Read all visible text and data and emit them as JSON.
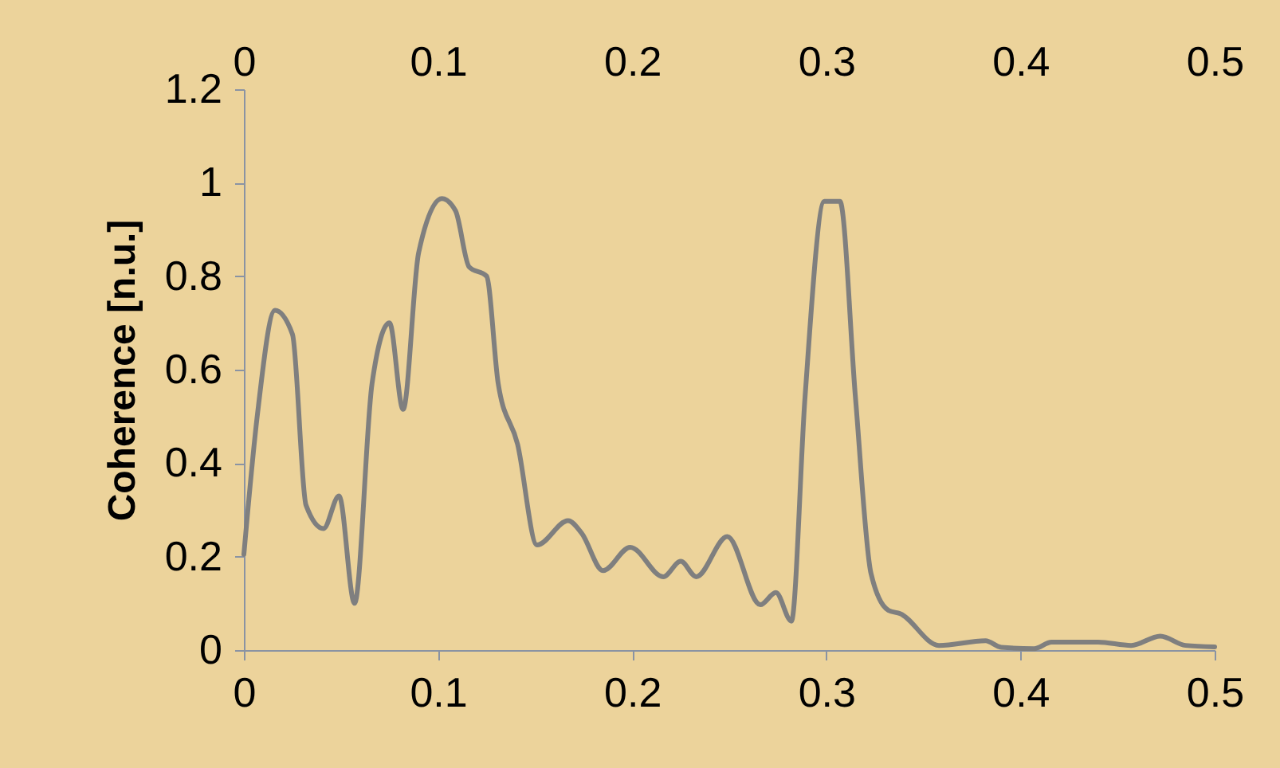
{
  "chart_data": {
    "type": "line",
    "ylabel": "Coherence [n.u.]",
    "x": [
      0,
      0.007,
      0.016,
      0.025,
      0.032,
      0.041,
      0.049,
      0.057,
      0.066,
      0.075,
      0.082,
      0.09,
      0.102,
      0.109,
      0.116,
      0.125,
      0.131,
      0.141,
      0.151,
      0.167,
      0.174,
      0.185,
      0.199,
      0.216,
      0.225,
      0.233,
      0.249,
      0.266,
      0.274,
      0.282,
      0.289,
      0.299,
      0.307,
      0.315,
      0.323,
      0.332,
      0.338,
      0.358,
      0.382,
      0.39,
      0.407,
      0.416,
      0.44,
      0.457,
      0.472,
      0.485,
      0.5
    ],
    "series": [
      {
        "color": "#7f7f7f",
        "values": [
          0.205,
          0.505,
          0.727,
          0.676,
          0.31,
          0.26,
          0.33,
          0.1,
          0.57,
          0.7,
          0.515,
          0.85,
          0.966,
          0.94,
          0.82,
          0.8,
          0.57,
          0.44,
          0.225,
          0.277,
          0.25,
          0.17,
          0.22,
          0.157,
          0.19,
          0.157,
          0.243,
          0.097,
          0.123,
          0.062,
          0.54,
          0.96,
          0.96,
          0.54,
          0.164,
          0.085,
          0.078,
          0.01,
          0.02,
          0.006,
          0.003,
          0.017,
          0.017,
          0.01,
          0.03,
          0.01,
          0.007
        ]
      }
    ],
    "xlim": [
      0,
      0.5
    ],
    "xticks": [
      0,
      0.1,
      0.2,
      0.3,
      0.4,
      0.5
    ],
    "x2lim": [
      0,
      0.5
    ],
    "x2ticks": [
      0,
      0.1,
      0.2,
      0.3,
      0.4,
      0.5
    ],
    "ylim": [
      0,
      1.2
    ],
    "yticks": [
      0,
      0.2,
      0.4,
      0.6,
      0.8,
      1,
      1.2
    ],
    "grid": false,
    "marker": "none",
    "line_style": "solid"
  }
}
